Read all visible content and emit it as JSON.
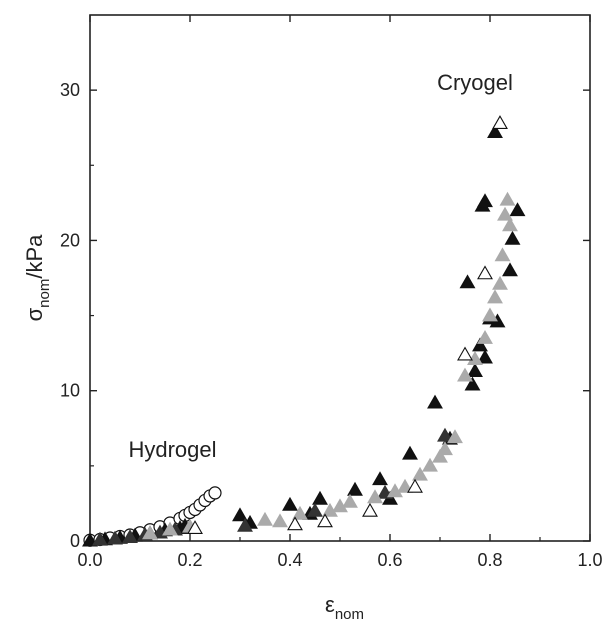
{
  "chart_data": {
    "type": "scatter",
    "xlabel": {
      "symbol": "ε",
      "subscript": "nom"
    },
    "ylabel": {
      "symbol": "σ",
      "subscript": "nom",
      "suffix": "/kPa"
    },
    "xlim": [
      0.0,
      1.0
    ],
    "ylim": [
      0,
      35
    ],
    "xticks": [
      "0.0",
      "0.2",
      "0.4",
      "0.6",
      "0.8",
      "1.0"
    ],
    "yticks": [
      "0",
      "10",
      "20",
      "30"
    ],
    "grid": false,
    "annotations": [
      {
        "text": "Cryogel",
        "x": 0.77,
        "y": 30
      },
      {
        "text": "Hydrogel",
        "x": 0.165,
        "y": 5.6
      }
    ],
    "series": [
      {
        "marker": "circle-open",
        "color": "#ffffff",
        "stroke": "#111111",
        "points": [
          [
            0.0,
            0.05
          ],
          [
            0.02,
            0.1
          ],
          [
            0.04,
            0.2
          ],
          [
            0.06,
            0.3
          ],
          [
            0.08,
            0.4
          ],
          [
            0.1,
            0.55
          ],
          [
            0.12,
            0.75
          ],
          [
            0.14,
            0.95
          ],
          [
            0.16,
            1.2
          ],
          [
            0.18,
            1.5
          ],
          [
            0.19,
            1.7
          ],
          [
            0.2,
            1.9
          ],
          [
            0.21,
            2.1
          ],
          [
            0.22,
            2.4
          ],
          [
            0.23,
            2.7
          ],
          [
            0.24,
            3.0
          ],
          [
            0.25,
            3.2
          ]
        ]
      },
      {
        "marker": "triangle-filled",
        "color": "#111111",
        "stroke": "#111111",
        "points": [
          [
            0.0,
            0.02
          ],
          [
            0.03,
            0.1
          ],
          [
            0.06,
            0.2
          ],
          [
            0.09,
            0.35
          ],
          [
            0.12,
            0.5
          ],
          [
            0.15,
            0.7
          ],
          [
            0.18,
            0.85
          ],
          [
            0.19,
            1.0
          ],
          [
            0.3,
            1.7
          ],
          [
            0.32,
            1.2
          ],
          [
            0.4,
            2.4
          ],
          [
            0.44,
            1.8
          ],
          [
            0.46,
            2.8
          ],
          [
            0.53,
            3.4
          ],
          [
            0.58,
            4.1
          ],
          [
            0.6,
            2.8
          ],
          [
            0.64,
            5.8
          ],
          [
            0.69,
            9.2
          ],
          [
            0.72,
            6.8
          ],
          [
            0.755,
            17.2
          ],
          [
            0.765,
            10.4
          ],
          [
            0.77,
            11.3
          ],
          [
            0.78,
            13.0
          ],
          [
            0.785,
            22.3
          ],
          [
            0.79,
            22.6
          ],
          [
            0.79,
            12.2
          ],
          [
            0.8,
            14.8
          ],
          [
            0.81,
            27.2
          ],
          [
            0.815,
            14.6
          ],
          [
            0.84,
            18.0
          ],
          [
            0.845,
            20.1
          ],
          [
            0.855,
            22.0
          ]
        ]
      },
      {
        "marker": "triangle-filled",
        "color": "#333333",
        "stroke": "#333333",
        "points": [
          [
            0.02,
            0.08
          ],
          [
            0.05,
            0.15
          ],
          [
            0.08,
            0.25
          ],
          [
            0.11,
            0.4
          ],
          [
            0.14,
            0.55
          ],
          [
            0.17,
            0.75
          ],
          [
            0.2,
            0.9
          ],
          [
            0.31,
            1.0
          ],
          [
            0.45,
            2.0
          ],
          [
            0.59,
            3.2
          ],
          [
            0.71,
            7.0
          ]
        ]
      },
      {
        "marker": "triangle-filled",
        "color": "#aaaaaa",
        "stroke": "#aaaaaa",
        "points": [
          [
            0.12,
            0.5
          ],
          [
            0.16,
            0.75
          ],
          [
            0.2,
            0.95
          ],
          [
            0.35,
            1.4
          ],
          [
            0.38,
            1.3
          ],
          [
            0.42,
            1.8
          ],
          [
            0.48,
            2.0
          ],
          [
            0.5,
            2.3
          ],
          [
            0.52,
            2.6
          ],
          [
            0.57,
            2.9
          ],
          [
            0.61,
            3.3
          ],
          [
            0.63,
            3.6
          ],
          [
            0.66,
            4.4
          ],
          [
            0.68,
            5.0
          ],
          [
            0.7,
            5.6
          ],
          [
            0.71,
            6.1
          ],
          [
            0.73,
            6.9
          ],
          [
            0.75,
            11.0
          ],
          [
            0.77,
            12.1
          ],
          [
            0.79,
            13.5
          ],
          [
            0.8,
            15.0
          ],
          [
            0.81,
            16.2
          ],
          [
            0.82,
            17.1
          ],
          [
            0.825,
            19.0
          ],
          [
            0.83,
            21.7
          ],
          [
            0.835,
            22.7
          ],
          [
            0.84,
            21.0
          ]
        ]
      },
      {
        "marker": "triangle-open",
        "color": "#ffffff",
        "stroke": "#111111",
        "points": [
          [
            0.21,
            0.85
          ],
          [
            0.41,
            1.1
          ],
          [
            0.47,
            1.3
          ],
          [
            0.56,
            2.0
          ],
          [
            0.65,
            3.6
          ],
          [
            0.75,
            12.4
          ],
          [
            0.79,
            17.8
          ],
          [
            0.82,
            27.8
          ]
        ]
      }
    ]
  }
}
